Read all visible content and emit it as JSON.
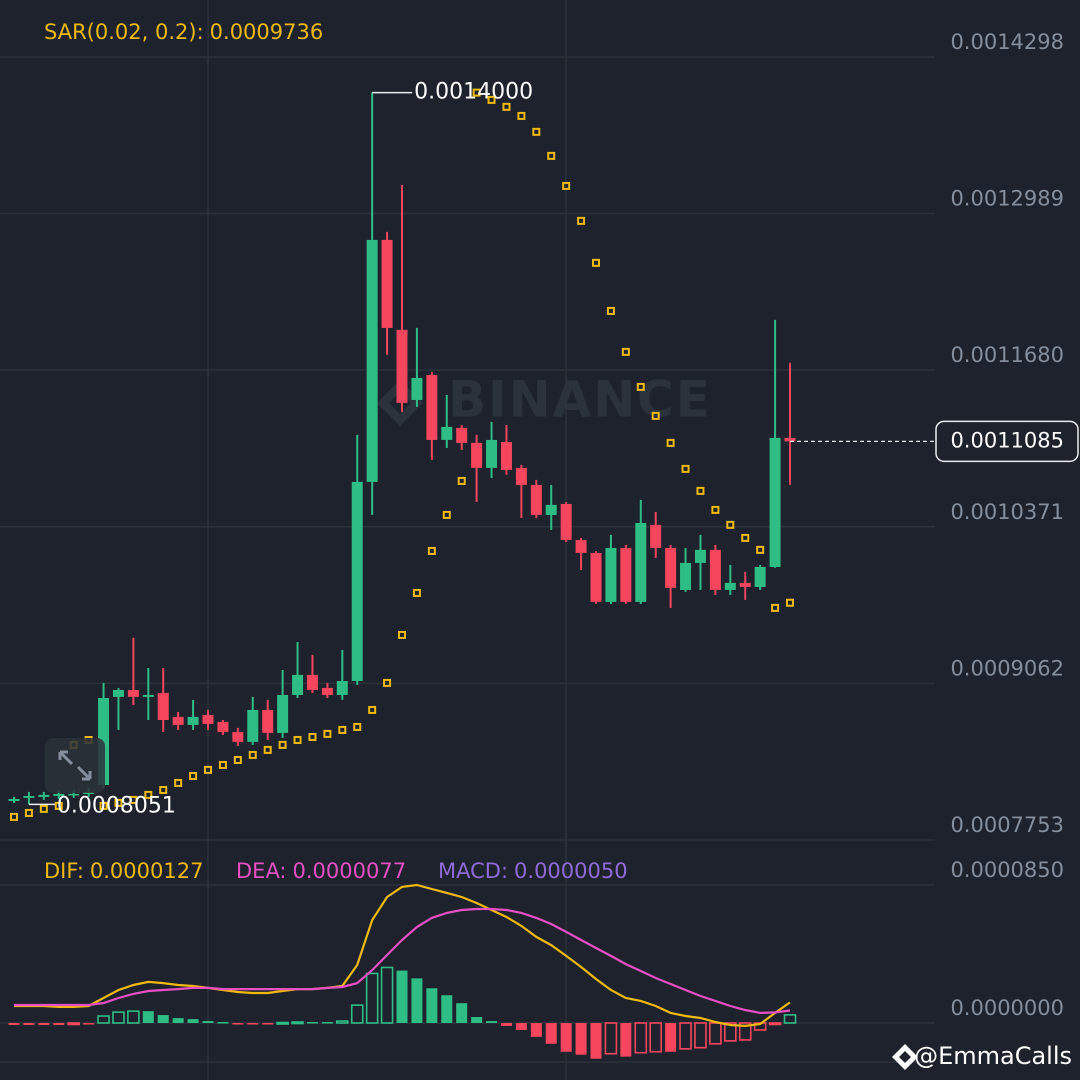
{
  "chart_data": {
    "type": "candlestick",
    "watermark": "BINANCE",
    "credit": "@EmmaCalls",
    "ylim": [
      0.0007753,
      0.0014774
    ],
    "yticks": [
      0.0014298,
      0.0012989,
      {
        "value": 0.001168,
        "label": "0.0011680"
      },
      0.0010371,
      0.0009062,
      0.0007753
    ],
    "grid": true,
    "up_color": "#2ebd85",
    "down_color": "#f6465d",
    "candles": {
      "open": [
        0.0008079,
        0.0008105,
        0.0008113,
        0.0008121,
        0.000813,
        0.0008138,
        0.0008213,
        0.0008949,
        0.0009007,
        0.0008949,
        0.0008982,
        0.0008782,
        0.0008715,
        0.0008798,
        0.000874,
        0.0008656,
        0.0008573,
        0.000884,
        0.0008648,
        0.0008965,
        0.0009133,
        0.0009024,
        0.0008965,
        0.0009082,
        0.0010746,
        0.0012769,
        0.0012017,
        0.0011431,
        0.001164,
        0.0011097,
        0.0011197,
        0.0011072,
        0.0010863,
        0.001108,
        0.0010863,
        0.0010721,
        0.001047,
        0.0010562,
        0.0010261,
        0.0010152,
        0.0009743,
        0.0010194,
        0.0009743,
        0.0010387,
        0.0010194,
        0.0009843,
        0.0010069,
        0.0010178,
        0.0009843,
        0.0009902,
        0.0009868,
        0.0010035,
        0.0011114
      ],
      "high": [
        0.0008113,
        0.0008155,
        0.0008155,
        0.0008171,
        0.0008171,
        0.0008188,
        0.0009066,
        0.0009024,
        0.0009442,
        0.0009191,
        0.0009191,
        0.0008823,
        0.0008924,
        0.000884,
        0.0008756,
        0.000869,
        0.0008949,
        0.0008924,
        0.0009174,
        0.0009408,
        0.00093,
        0.0009066,
        0.0009342,
        0.0011139,
        0.0014,
        0.0012836,
        0.0013229,
        0.0012033,
        0.0011665,
        0.0011473,
        0.0011222,
        0.0011139,
        0.0011248,
        0.0011222,
        0.0010888,
        0.0010763,
        0.0010721,
        0.0010579,
        0.0010278,
        0.0010169,
        0.0010303,
        0.0010219,
        0.0010596,
        0.0010495,
        0.0010219,
        0.0010194,
        0.0010303,
        0.0010219,
        0.0010052,
        0.0009994,
        0.0010052,
        0.00121,
        0.0011741
      ],
      "low": [
        0.0008063,
        0.0008051,
        0.0008088,
        0.0008096,
        0.0008105,
        0.0008113,
        0.0008188,
        0.0008673,
        0.0008882,
        0.0008756,
        0.0008656,
        0.0008673,
        0.0008673,
        0.0008673,
        0.0008631,
        0.0008539,
        0.0008548,
        0.0008589,
        0.0008606,
        0.000894,
        0.0008982,
        0.000894,
        0.0008924,
        0.0009049,
        0.001047,
        0.0011808,
        0.0011331,
        0.0011373,
        0.001093,
        0.001103,
        0.0011013,
        0.0010579,
        0.0010779,
        0.0010805,
        0.0010445,
        0.0010445,
        0.0010345,
        0.0010244,
        0.001001,
        0.0009726,
        0.0009726,
        0.0009726,
        0.0009726,
        0.0010111,
        0.0009693,
        0.0009826,
        0.0009843,
        0.0009801,
        0.0009801,
        0.000976,
        0.0009843,
        0.0010027,
        0.0010721
      ],
      "close": [
        0.0008096,
        0.0008121,
        0.000813,
        0.0008138,
        0.0008138,
        0.0008155,
        0.000894,
        0.0009007,
        0.0008949,
        0.0008965,
        0.0008756,
        0.0008715,
        0.0008782,
        0.0008723,
        0.0008656,
        0.0008573,
        0.000884,
        0.0008648,
        0.0008965,
        0.0009133,
        0.0009007,
        0.0008965,
        0.0009082,
        0.0010746,
        0.0012769,
        0.0012033,
        0.0011406,
        0.0011615,
        0.0011097,
        0.0011206,
        0.0011072,
        0.0010863,
        0.0011097,
        0.0010846,
        0.0010721,
        0.001047,
        0.0010554,
        0.0010261,
        0.0010152,
        0.0009743,
        0.0010194,
        0.0009743,
        0.0010403,
        0.0010194,
        0.000986,
        0.0010069,
        0.0010178,
        0.0009843,
        0.0009902,
        0.0009868,
        0.0010035,
        0.0011114,
        0.0011085
      ],
      "high_labels": [
        null,
        null,
        null,
        null,
        null,
        null,
        null,
        null,
        null,
        null,
        null,
        null,
        null,
        null,
        null,
        null,
        null,
        null,
        null,
        null,
        null,
        null,
        null,
        null,
        "0.0014000",
        null,
        null,
        null,
        null,
        null,
        null,
        null,
        null,
        null,
        null,
        null,
        null,
        null,
        null,
        null,
        null,
        null,
        null,
        null,
        null,
        null,
        null,
        null,
        null,
        null,
        null,
        null,
        null
      ]
    },
    "sar": {
      "name": "SAR(0.02, 0.2):",
      "color": "#f0b90b",
      "values": [
        0.0007946,
        0.0007979,
        0.0008013,
        0.0008038,
        0.0008548,
        0.0008589,
        0.0008038,
        0.0008063,
        0.0008088,
        0.000813,
        0.0008171,
        0.000823,
        0.0008288,
        0.0008339,
        0.000838,
        0.0008422,
        0.0008464,
        0.0008506,
        0.0008548,
        0.0008589,
        0.0008614,
        0.000864,
        0.0008673,
        0.0008698,
        0.000884,
        0.0009066,
        0.0009467,
        0.0009818,
        0.0010169,
        0.001047,
        0.0010754,
        0.0014,
        0.0013939,
        0.0013881,
        0.0013805,
        0.0013672,
        0.0013471,
        0.001322,
        0.0012928,
        0.0012577,
        0.0012175,
        0.0011833,
        0.001154,
        0.0011298,
        0.0011072,
        0.0010855,
        0.0010671,
        0.0010512,
        0.0010387,
        0.0010278,
        0.0010178,
        0.0009693,
        0.0009736
      ]
    },
    "macd_panel": {
      "ylim": [
        -3.51e-05,
        0.0001127
      ],
      "yticks": [
        {
          "value": 8.5e-05,
          "label": "0.0000850"
        },
        {
          "value": 0,
          "label": "0.0000000"
        }
      ],
      "series": [
        {
          "name": "DIF:",
          "color": "#f0b90b",
          "values": [
            1.05e-05,
            1.05e-05,
            1.05e-05,
            9.9e-06,
            9.9e-06,
            1.05e-05,
            1.54e-05,
            2.03e-05,
            2.34e-05,
            2.53e-05,
            2.46e-05,
            2.34e-05,
            2.28e-05,
            2.16e-05,
            2.03e-05,
            1.91e-05,
            1.85e-05,
            1.85e-05,
            1.97e-05,
            2.09e-05,
            2.09e-05,
            2.16e-05,
            2.28e-05,
            3.57e-05,
            6.34e-05,
            7.76e-05,
            8.38e-05,
            8.5e-05,
            8.25e-05,
            8.01e-05,
            7.76e-05,
            7.39e-05,
            6.96e-05,
            6.53e-05,
            5.98e-05,
            5.3e-05,
            4.8e-05,
            4.13e-05,
            3.45e-05,
            2.71e-05,
            2.03e-05,
            1.54e-05,
            1.36e-05,
            1.05e-05,
            6.2e-06,
            4.3e-06,
            3.1e-06,
            6e-07,
            -1.2e-06,
            -1.8e-06,
            -6e-07,
            6.2e-06,
            1.27e-05
          ]
        },
        {
          "name": "DEA:",
          "color": "#e84fc4",
          "values": [
            1.11e-05,
            1.11e-05,
            1.11e-05,
            1.11e-05,
            1.11e-05,
            1.11e-05,
            1.23e-05,
            1.54e-05,
            1.79e-05,
            1.97e-05,
            2.03e-05,
            2.09e-05,
            2.16e-05,
            2.16e-05,
            2.09e-05,
            2.09e-05,
            2.09e-05,
            2.09e-05,
            2.09e-05,
            2.09e-05,
            2.09e-05,
            2.16e-05,
            2.22e-05,
            2.46e-05,
            3.26e-05,
            4.19e-05,
            5.11e-05,
            5.91e-05,
            6.47e-05,
            6.78e-05,
            6.96e-05,
            7.02e-05,
            7.02e-05,
            6.96e-05,
            6.78e-05,
            6.47e-05,
            6.1e-05,
            5.61e-05,
            5.11e-05,
            4.62e-05,
            4.13e-05,
            3.63e-05,
            3.2e-05,
            2.77e-05,
            2.4e-05,
            2.03e-05,
            1.66e-05,
            1.36e-05,
            1.05e-05,
            8e-06,
            6.2e-06,
            6.5e-06,
            7.7e-06
          ]
        }
      ],
      "histogram": {
        "name": "MACD:",
        "color": "#8e6ad8",
        "values": [
          -1.2e-06,
          -1.2e-06,
          -1.2e-06,
          -1.2e-06,
          -6e-07,
          -6e-07,
          4.3e-06,
          6.7e-06,
          7.3e-06,
          7.3e-06,
          4.9e-06,
          3e-06,
          2.4e-06,
          1.2e-06,
          6e-07,
          -6e-07,
          -6e-07,
          -6e-07,
          3e-07,
          6e-07,
          6e-07,
          6e-07,
          1.2e-06,
          1.1e-05,
          3.05e-05,
          3.42e-05,
          3.23e-05,
          2.75e-05,
          2.14e-05,
          1.71e-05,
          1.22e-05,
          3.7e-06,
          1.2e-06,
          -1.8e-06,
          -4.3e-06,
          -8.5e-06,
          -1.28e-05,
          -1.77e-05,
          -1.95e-05,
          -2.2e-05,
          -1.89e-05,
          -2.07e-05,
          -1.83e-05,
          -1.77e-05,
          -1.77e-05,
          -1.59e-05,
          -1.52e-05,
          -1.28e-05,
          -1.1e-05,
          -1.04e-05,
          -4.3e-06,
          -6e-07,
          5e-06
        ],
        "value_labels": [
          null,
          null,
          null,
          null,
          null,
          null,
          null,
          null,
          null,
          null,
          null,
          null,
          null,
          null,
          null,
          null,
          null,
          null,
          null,
          null,
          null,
          null,
          null,
          null,
          null,
          null,
          null,
          null,
          null,
          null,
          null,
          null,
          null,
          null,
          null,
          null,
          null,
          null,
          null,
          null,
          null,
          null,
          null,
          null,
          null,
          null,
          null,
          null,
          null,
          null,
          null,
          null,
          "0.0000050"
        ]
      }
    }
  }
}
